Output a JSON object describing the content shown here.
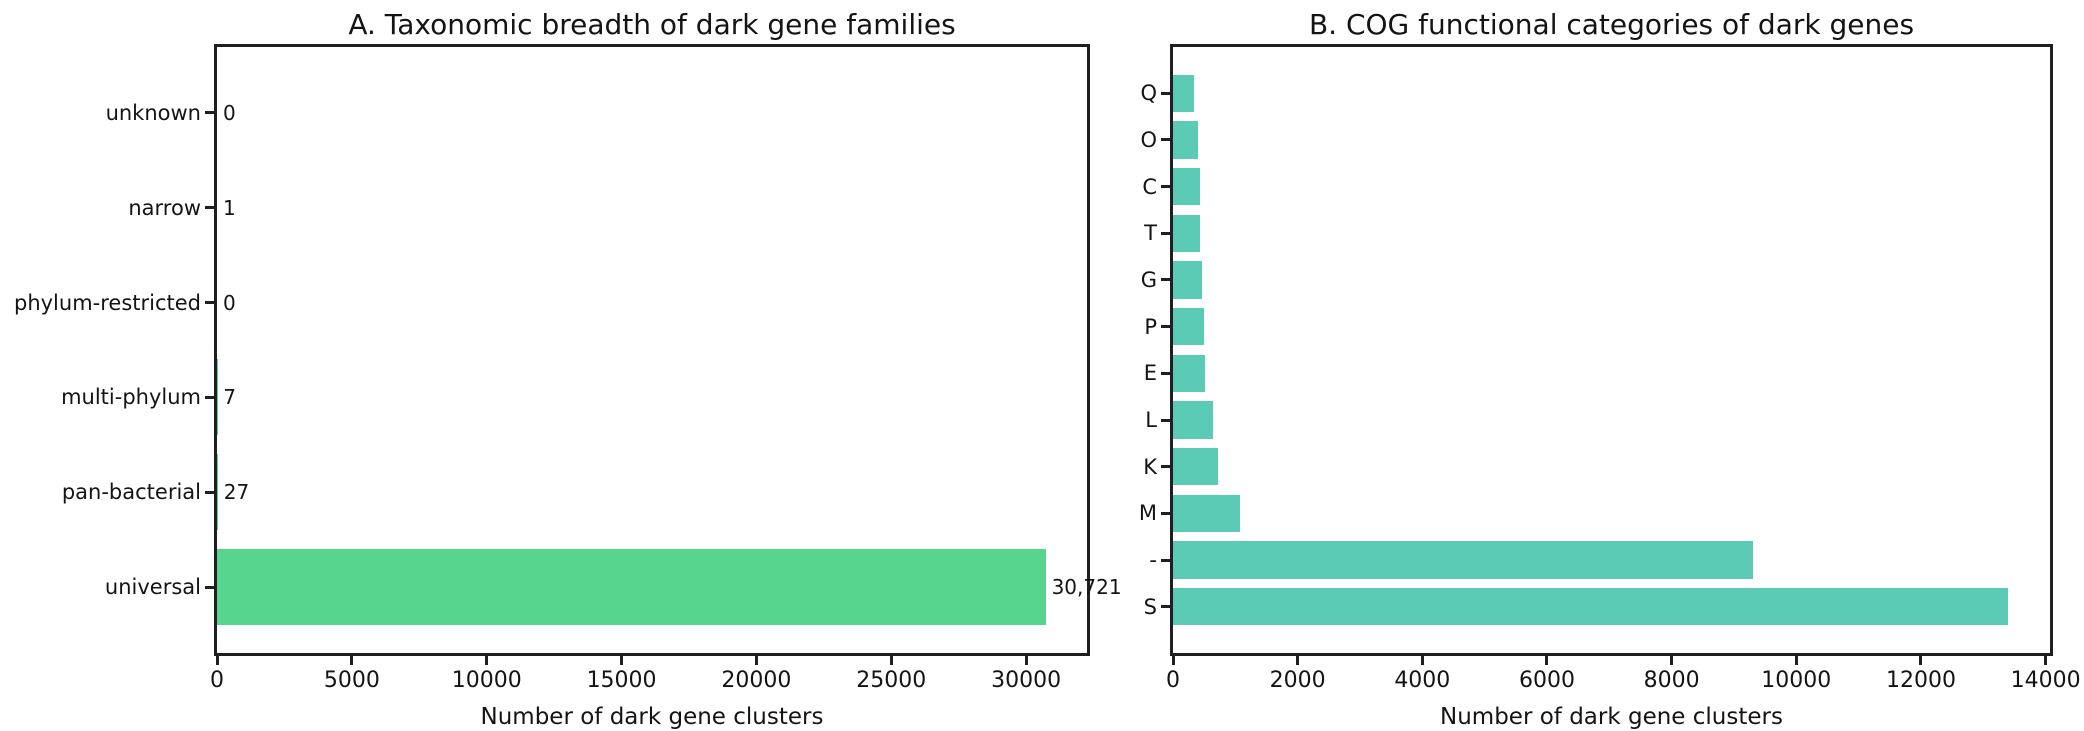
{
  "figure": {
    "background": "#ffffff",
    "text_color": "#141414",
    "spine_color": "#1f1f1f"
  },
  "chart_data": [
    {
      "type": "bar",
      "orientation": "horizontal",
      "title": "A. Taxonomic breadth of dark gene families",
      "xlabel": "Number of dark gene clusters",
      "ylabel": "",
      "categories": [
        "unknown",
        "narrow",
        "phylum-restricted",
        "multi-phylum",
        "pan-bacterial",
        "universal"
      ],
      "values": [
        0,
        1,
        0,
        7,
        27,
        30721
      ],
      "value_labels": [
        "0",
        "1",
        "0",
        "7",
        "27",
        "30,721"
      ],
      "bar_color": "#57d48d",
      "xlim": [
        0,
        32257
      ],
      "xticks": [
        0,
        5000,
        10000,
        15000,
        20000,
        25000,
        30000
      ],
      "grid": false,
      "legend": null
    },
    {
      "type": "bar",
      "orientation": "horizontal",
      "title": "B. COG functional categories of dark genes",
      "xlabel": "Number of dark gene clusters",
      "ylabel": "",
      "categories": [
        "Q",
        "O",
        "C",
        "T",
        "G",
        "P",
        "E",
        "L",
        "K",
        "M",
        "-",
        "S"
      ],
      "values": [
        340,
        405,
        430,
        440,
        470,
        505,
        520,
        645,
        725,
        1075,
        9300,
        13400
      ],
      "value_labels": null,
      "bar_color": "#5ccbb6",
      "xlim": [
        0,
        14070
      ],
      "xticks": [
        0,
        2000,
        4000,
        6000,
        8000,
        10000,
        12000,
        14000
      ],
      "grid": false,
      "legend": null
    }
  ]
}
